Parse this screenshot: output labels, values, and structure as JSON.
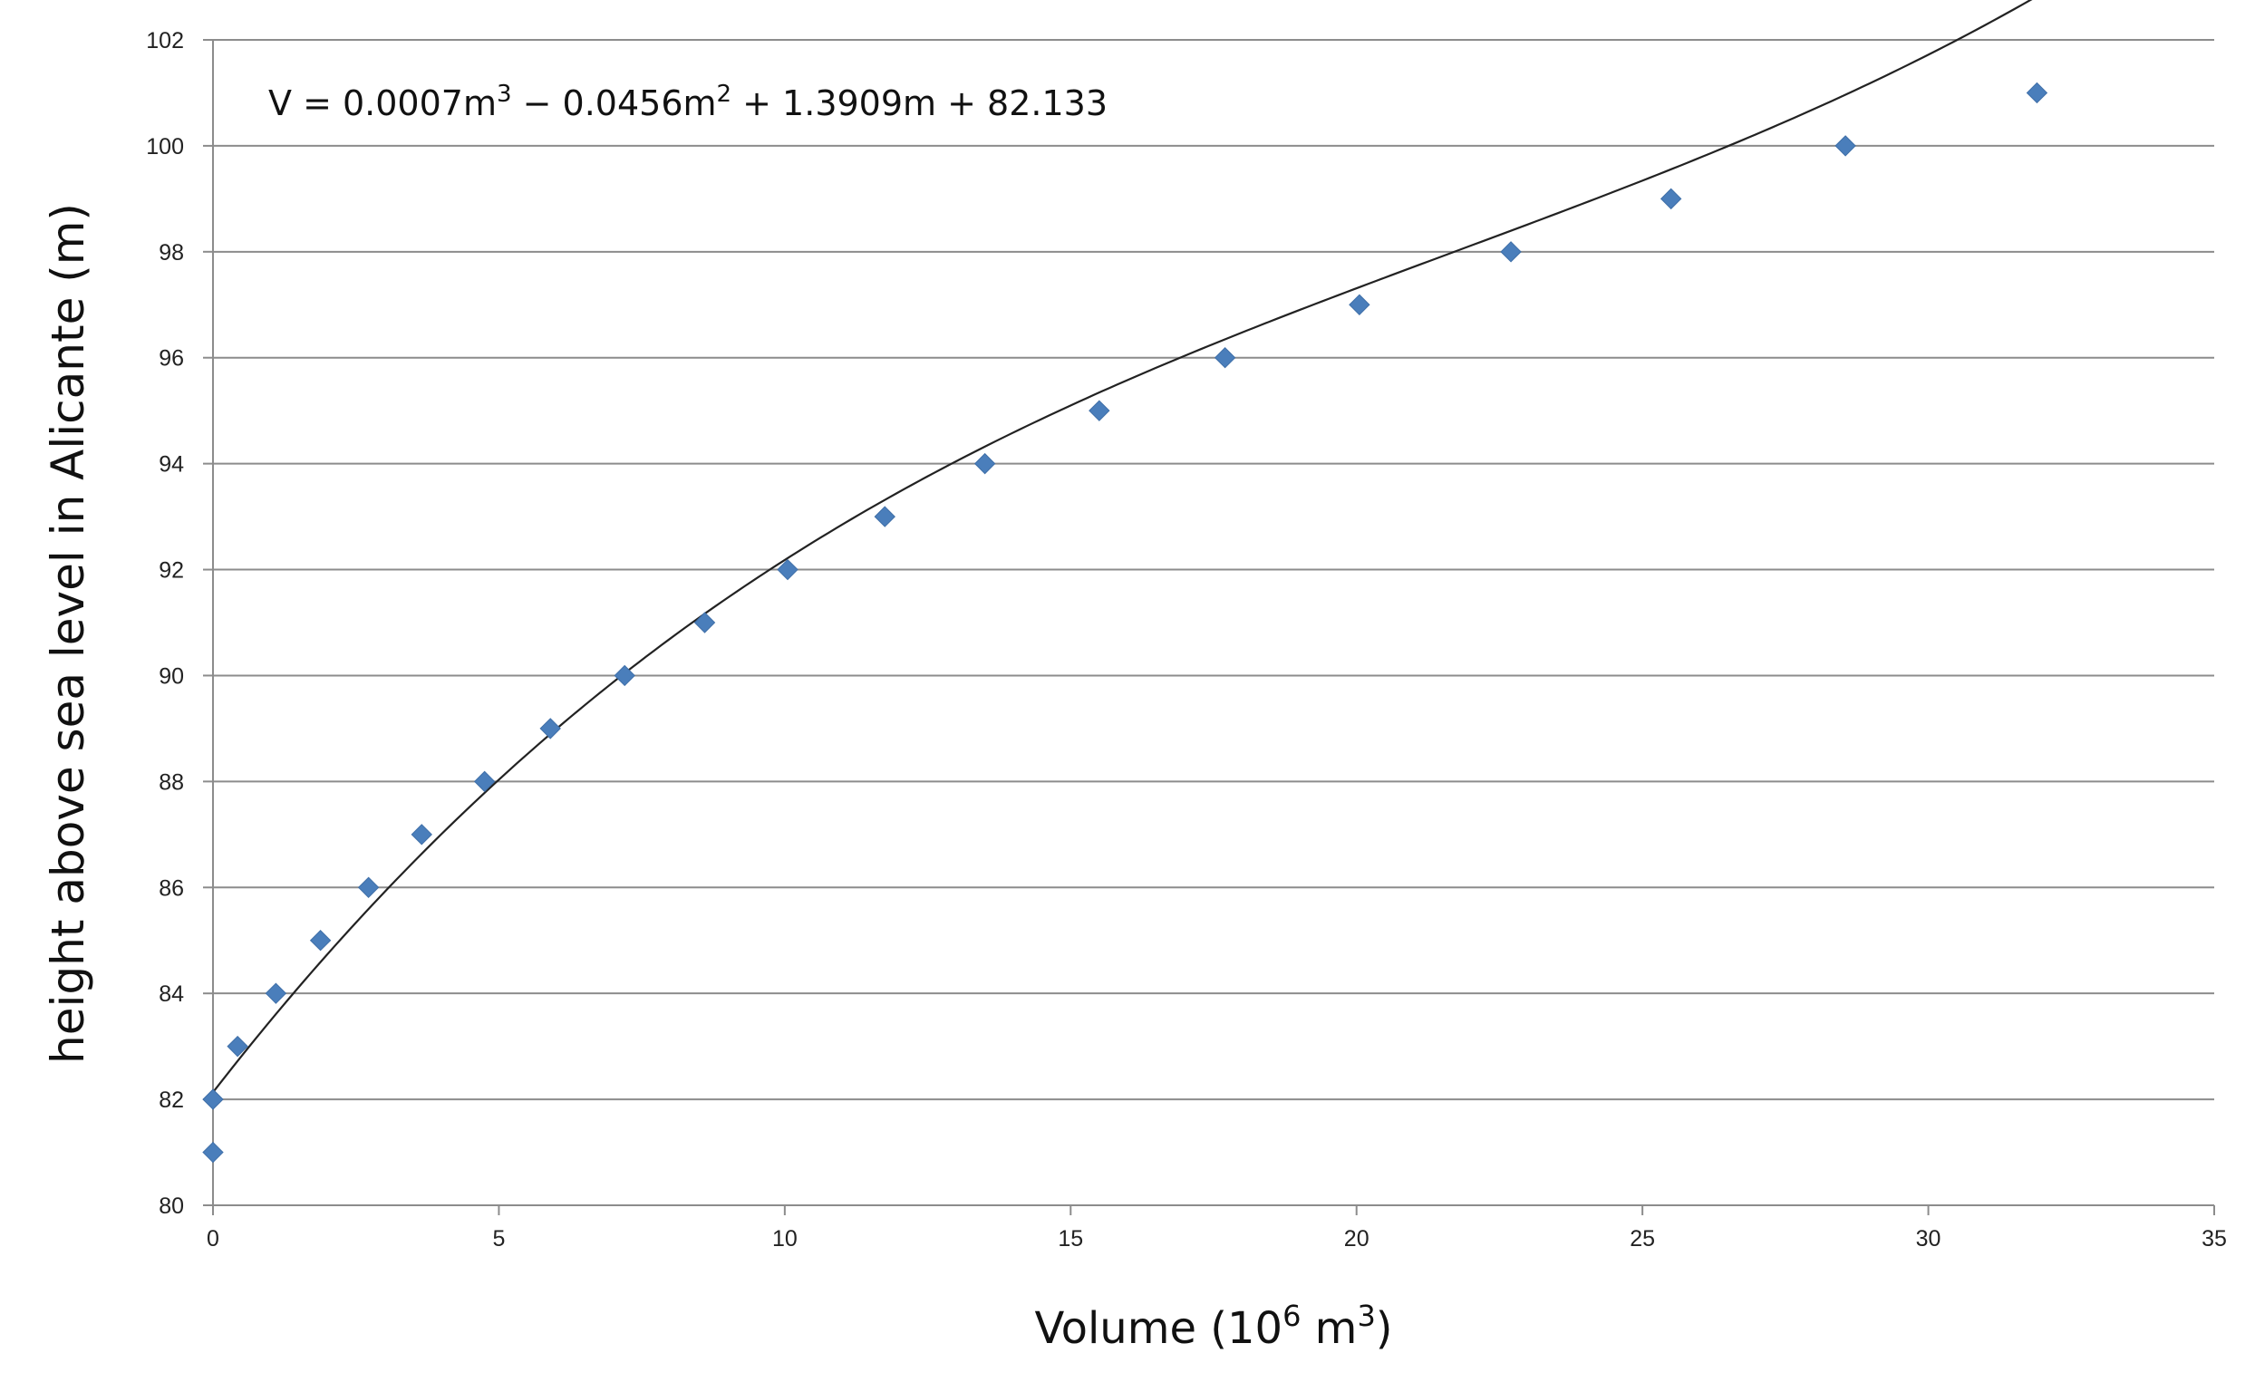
{
  "chart_data": {
    "type": "scatter",
    "title": "",
    "xlabel": {
      "text": "Volume (10",
      "sup1": "6",
      "mid": " m",
      "sup2": "3",
      "end": ")"
    },
    "ylabel": "height above sea level in Alicante  (m)",
    "xlim": [
      0,
      35
    ],
    "ylim": [
      80,
      102
    ],
    "xticks": [
      0,
      5,
      10,
      15,
      20,
      25,
      30,
      35
    ],
    "yticks": [
      80,
      82,
      84,
      86,
      88,
      90,
      92,
      94,
      96,
      98,
      100,
      102
    ],
    "grid": "horizontal",
    "legend": "none",
    "marker_color": "#4A7EBB",
    "trendline_color": "#222222",
    "annotation": {
      "equation_parts": [
        {
          "t": "V = 0.0007m"
        },
        {
          "t": "3",
          "sup": true
        },
        {
          "t": " − 0.0456m"
        },
        {
          "t": "2",
          "sup": true
        },
        {
          "t": " + 1.3909m + 82.133"
        }
      ]
    },
    "series": [
      {
        "points": [
          {
            "x": 0.0,
            "y": 81
          },
          {
            "x": 0.0,
            "y": 82
          },
          {
            "x": 0.43,
            "y": 83
          },
          {
            "x": 1.1,
            "y": 84
          },
          {
            "x": 1.88,
            "y": 85
          },
          {
            "x": 2.72,
            "y": 86
          },
          {
            "x": 3.65,
            "y": 87
          },
          {
            "x": 4.75,
            "y": 88
          },
          {
            "x": 5.9,
            "y": 89
          },
          {
            "x": 7.2,
            "y": 90
          },
          {
            "x": 8.6,
            "y": 91
          },
          {
            "x": 10.05,
            "y": 92
          },
          {
            "x": 11.75,
            "y": 93
          },
          {
            "x": 13.5,
            "y": 94
          },
          {
            "x": 15.5,
            "y": 95
          },
          {
            "x": 17.7,
            "y": 96
          },
          {
            "x": 20.05,
            "y": 97
          },
          {
            "x": 22.7,
            "y": 98
          },
          {
            "x": 25.5,
            "y": 99
          },
          {
            "x": 28.55,
            "y": 100
          },
          {
            "x": 31.9,
            "y": 101
          }
        ]
      }
    ],
    "trendline": {
      "type": "polynomial",
      "coefficients": [
        82.133,
        1.3909,
        -0.0456,
        0.0007
      ],
      "x_range": [
        0,
        31.9
      ]
    }
  }
}
